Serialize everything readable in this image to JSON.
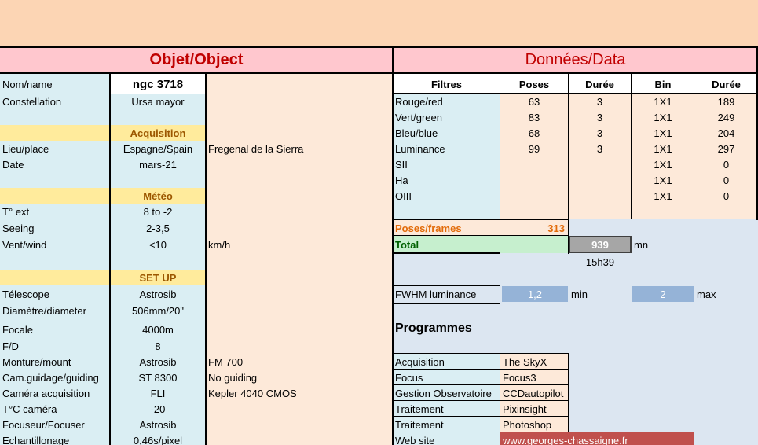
{
  "left": {
    "title": "Objet/Object",
    "name": {
      "label": "Nom/name",
      "value": "ngc 3718"
    },
    "constellation": {
      "label": "Constellation",
      "value": "Ursa mayor"
    },
    "acquisition_header": "Acquisition",
    "place": {
      "label": "Lieu/place",
      "value": "Espagne/Spain",
      "extra": "Fregenal de la Sierra"
    },
    "date": {
      "label": "Date",
      "value": "mars-21"
    },
    "meteo_header": "Météo",
    "temp": {
      "label": "T° ext",
      "value": "8 to -2"
    },
    "seeing": {
      "label": "Seeing",
      "value": "2-3,5"
    },
    "wind": {
      "label": "Vent/wind",
      "value": "<10",
      "unit": "km/h"
    },
    "setup_header": "SET UP",
    "setup": [
      {
        "label": "Télescope",
        "value": "Astrosib",
        "extra": ""
      },
      {
        "label": "Diamètre/diameter",
        "value": "506mm/20\"",
        "extra": ""
      },
      {
        "label": "Focale",
        "value": "4000m",
        "extra": ""
      },
      {
        "label": "F/D",
        "value": "8",
        "extra": ""
      },
      {
        "label": "Monture/mount",
        "value": "Astrosib",
        "extra": "FM 700"
      },
      {
        "label": "Cam.guidage/guiding",
        "value": "ST 8300",
        "extra": "No guiding"
      },
      {
        "label": "Caméra acquisition",
        "value": "FLI",
        "extra": "Kepler 4040 CMOS"
      },
      {
        "label": "T°C caméra",
        "value": "-20",
        "extra": ""
      },
      {
        "label": "Focuseur/Focuser",
        "value": "Astrosib",
        "extra": ""
      },
      {
        "label": "Echantillonage",
        "value": "0,46s/pixel",
        "extra": ""
      }
    ]
  },
  "right": {
    "title": "Données/Data",
    "headers": [
      "Filtres",
      "Poses",
      "Durée",
      "Bin",
      "Durée"
    ],
    "rows": [
      [
        "Rouge/red",
        "63",
        "3",
        "1X1",
        "189"
      ],
      [
        "Vert/green",
        "83",
        "3",
        "1X1",
        "249"
      ],
      [
        "Bleu/blue",
        "68",
        "3",
        "1X1",
        "204"
      ],
      [
        "Luminance",
        "99",
        "3",
        "1X1",
        "297"
      ],
      [
        "SII",
        "",
        "",
        "1X1",
        "0"
      ],
      [
        "Ha",
        "",
        "",
        "1X1",
        "0"
      ],
      [
        "OIII",
        "",
        "",
        "1X1",
        "0"
      ]
    ],
    "poses_label": "Poses/frames",
    "poses_value": "313",
    "total_label": "Total",
    "total_value": "939",
    "total_unit": "mn",
    "total_hours": "15h39",
    "fwhm_label": "FWHM luminance",
    "fwhm_min": "1,2",
    "fwhm_min_label": "min",
    "fwhm_max": "2",
    "fwhm_max_label": "max",
    "programs_title": "Programmes",
    "programs": [
      {
        "label": "Acquisition",
        "value": "The SkyX"
      },
      {
        "label": "Focus",
        "value": "Focus3"
      },
      {
        "label": "Gestion Observatoire",
        "value": "CCDautopilot"
      },
      {
        "label": "Traitement",
        "value": "Pixinsight"
      },
      {
        "label": "Traitement",
        "value": "Photoshop"
      }
    ],
    "website_label": "Web site",
    "website_value": "www.georges-chassaigne.fr"
  },
  "colors": {
    "top_band": "#fcd5b4",
    "title_pink": "#ffc7ce",
    "title_red": "#c00000",
    "light_blue": "#daeef3",
    "peach": "#fde9d9",
    "yellow": "#ffeb9c",
    "gold_text": "#9c5700",
    "green": "#c6efce",
    "gray_blue": "#dce6f1",
    "steel_blue": "#95b3d7",
    "orange_text": "#e26b0a",
    "website_red": "#c0504d"
  }
}
